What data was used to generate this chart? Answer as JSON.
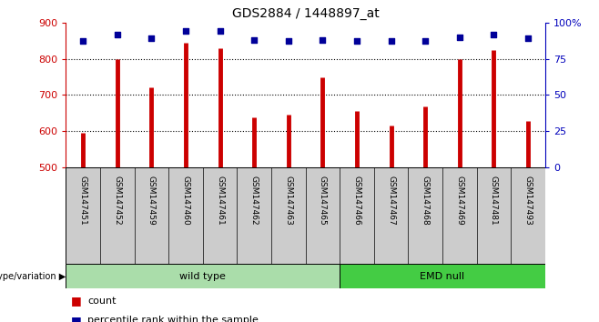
{
  "title": "GDS2884 / 1448897_at",
  "samples": [
    "GSM147451",
    "GSM147452",
    "GSM147459",
    "GSM147460",
    "GSM147461",
    "GSM147462",
    "GSM147463",
    "GSM147465",
    "GSM147466",
    "GSM147467",
    "GSM147468",
    "GSM147469",
    "GSM147481",
    "GSM147493"
  ],
  "counts": [
    595,
    800,
    720,
    843,
    830,
    638,
    645,
    748,
    655,
    615,
    668,
    800,
    825,
    628
  ],
  "percentile_ranks": [
    87,
    92,
    89,
    94,
    94,
    88,
    87,
    88,
    87,
    87,
    87,
    90,
    92,
    89
  ],
  "groups": [
    {
      "label": "wild type",
      "start": 0,
      "end": 8,
      "color": "#aaddaa"
    },
    {
      "label": "EMD null",
      "start": 8,
      "end": 14,
      "color": "#44cc44"
    }
  ],
  "ylim": [
    500,
    900
  ],
  "yticks": [
    500,
    600,
    700,
    800,
    900
  ],
  "y2lim": [
    0,
    100
  ],
  "y2ticks": [
    0,
    25,
    50,
    75,
    100
  ],
  "y2labels": [
    "0",
    "25",
    "50",
    "75",
    "100%"
  ],
  "bar_color": "#CC0000",
  "dot_color": "#000099",
  "grid_color": "#000000",
  "bg_color": "#FFFFFF",
  "bar_width": 0.07,
  "xlabel_color": "#CC0000",
  "ylabel2_color": "#0000BB",
  "legend_count_color": "#CC0000",
  "legend_pct_color": "#000099",
  "genotype_label": "genotype/variation",
  "legend_count": "count",
  "legend_pct": "percentile rank within the sample"
}
